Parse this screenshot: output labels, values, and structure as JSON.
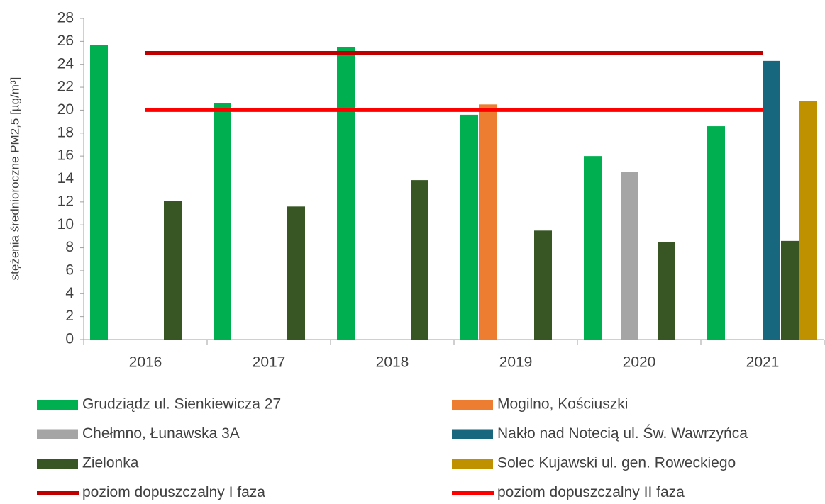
{
  "chart_data": {
    "type": "bar",
    "y_label": "stężenia średnioroczne PM2,5 [µg/m³]",
    "categories": [
      "2016",
      "2017",
      "2018",
      "2019",
      "2020",
      "2021"
    ],
    "series": [
      {
        "name": "Grudziądz ul. Sienkiewicza 27",
        "color": "#00b050",
        "values": [
          25.7,
          20.6,
          25.5,
          19.6,
          16.0,
          18.6
        ]
      },
      {
        "name": "Mogilno, Kościuszki",
        "color": "#ed7d31",
        "values": [
          null,
          null,
          null,
          20.5,
          null,
          null
        ]
      },
      {
        "name": "Chełmno, Łunawska 3A",
        "color": "#a5a5a5",
        "values": [
          null,
          null,
          null,
          null,
          14.6,
          null
        ]
      },
      {
        "name": "Nakło nad Notecią ul. Św. Wawrzyńca",
        "color": "#17677f",
        "values": [
          null,
          null,
          null,
          null,
          null,
          24.3
        ]
      },
      {
        "name": "Zielonka",
        "color": "#375623",
        "values": [
          12.1,
          11.6,
          13.9,
          9.5,
          8.5,
          8.6
        ]
      },
      {
        "name": "Solec Kujawski ul. gen. Roweckiego",
        "color": "#bf9000",
        "values": [
          null,
          null,
          null,
          null,
          null,
          20.8
        ]
      },
      {
        "name": "poziom dopuszczalny I faza",
        "color": "#c00000",
        "type": "line",
        "values": [
          25,
          25,
          25,
          25,
          25,
          25
        ]
      },
      {
        "name": "poziom dopuszczalny II faza",
        "color": "#ff0000",
        "type": "line",
        "values": [
          20,
          20,
          20,
          20,
          20,
          20
        ]
      }
    ],
    "ylim": [
      0,
      28
    ],
    "yticks": [
      0,
      2,
      4,
      6,
      8,
      10,
      12,
      14,
      16,
      18,
      20,
      22,
      24,
      26,
      28
    ],
    "legend": "bottom"
  }
}
